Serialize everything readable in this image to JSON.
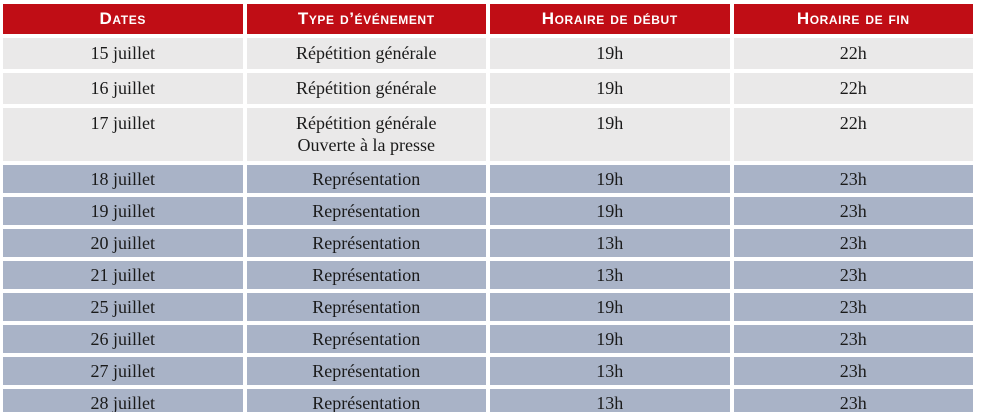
{
  "table": {
    "headers": {
      "dates": "Dates",
      "type": "Type d’événement",
      "start": "Horaire de début",
      "end": "Horaire de fin"
    },
    "rows": [
      {
        "date": "15 juillet",
        "type": "Répétition générale",
        "start": "19h",
        "end": "22h"
      },
      {
        "date": "16 juillet",
        "type": "Répétition générale",
        "start": "19h",
        "end": "22h"
      },
      {
        "date": "17 juillet",
        "type": "Répétition générale\nOuverte à la presse",
        "start": "19h",
        "end": "22h"
      },
      {
        "date": "18 juillet",
        "type": "Représentation",
        "start": "19h",
        "end": "23h"
      },
      {
        "date": "19 juillet",
        "type": "Représentation",
        "start": "19h",
        "end": "23h"
      },
      {
        "date": "20 juillet",
        "type": "Représentation",
        "start": "13h",
        "end": "23h"
      },
      {
        "date": "21 juillet",
        "type": "Représentation",
        "start": "13h",
        "end": "23h"
      },
      {
        "date": "25 juillet",
        "type": "Représentation",
        "start": "19h",
        "end": "23h"
      },
      {
        "date": "26 juillet",
        "type": "Représentation",
        "start": "19h",
        "end": "23h"
      },
      {
        "date": "27 juillet",
        "type": "Représentation",
        "start": "13h",
        "end": "23h"
      },
      {
        "date": "28 juillet",
        "type": "Représentation",
        "start": "13h",
        "end": "23h"
      }
    ],
    "colors": {
      "header_bg": "#c00d15",
      "header_text": "#ffffff",
      "row_light_bg": "#eae9e9",
      "row_blue_bg": "#a9b3c7",
      "body_text": "#1a1a1a"
    }
  }
}
